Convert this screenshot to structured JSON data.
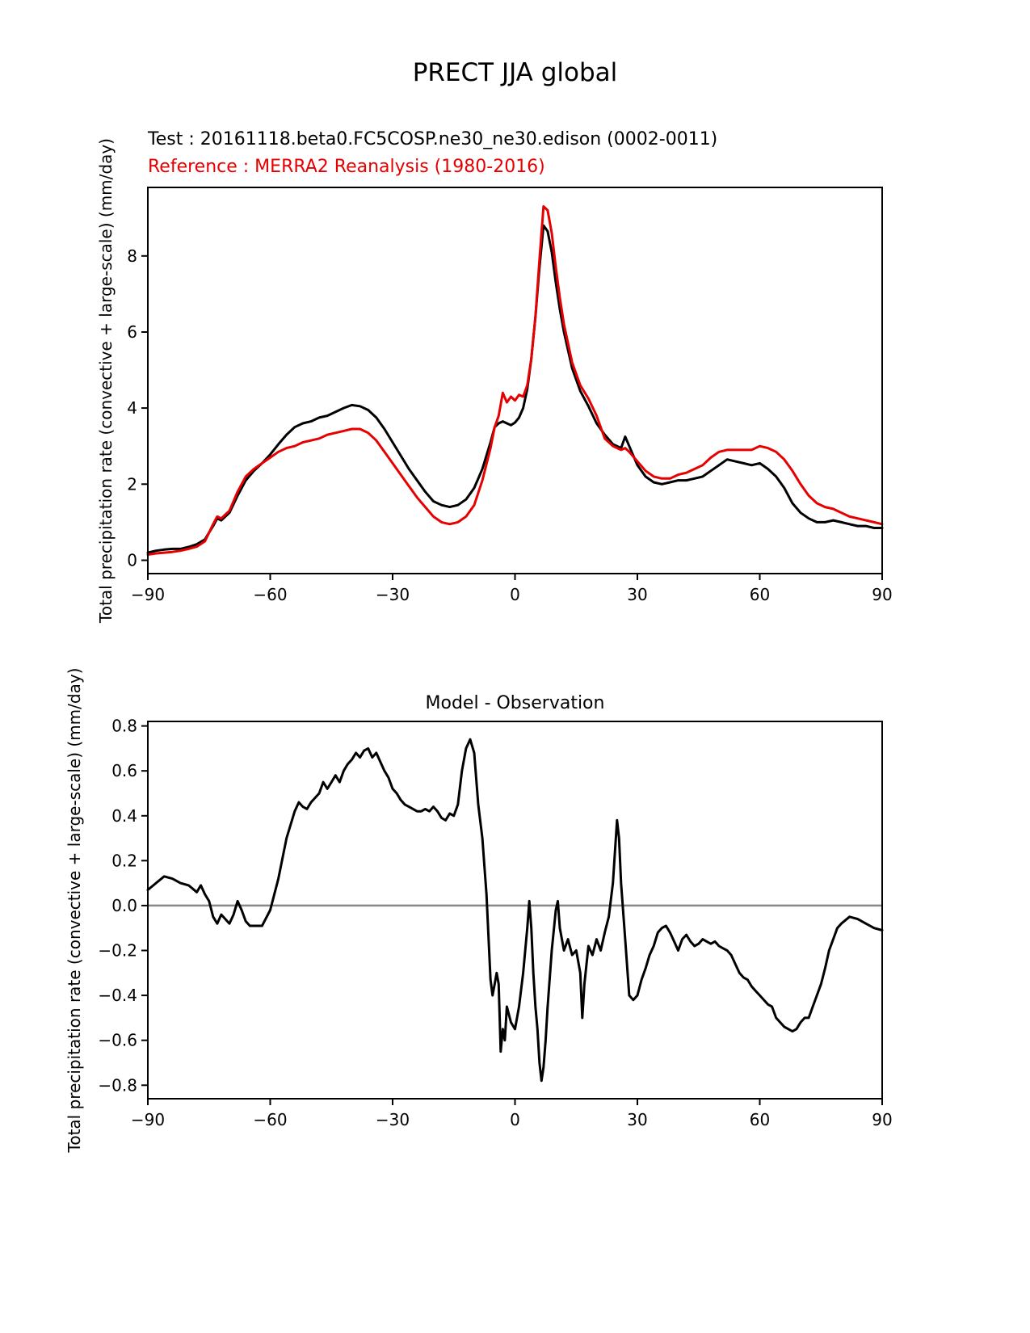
{
  "page_title": "PRECT JJA global",
  "colors": {
    "test": "#000000",
    "reference": "#e60000",
    "zero_line": "#888888",
    "axis": "#000000"
  },
  "chart_data": [
    {
      "type": "line",
      "title": "",
      "annotations": [
        "Test : 20161118.beta0.FC5COSP.ne30_ne30.edison (0002-0011)",
        "Reference : MERRA2 Reanalysis (1980-2016)"
      ],
      "xlabel": "",
      "ylabel": "Total precipitation rate (convective + large-scale) (mm/day)",
      "xlim": [
        -90,
        90
      ],
      "ylim": [
        -0.35,
        9.8
      ],
      "grid": false,
      "legend_position": "above-left",
      "xticks": {
        "values": [
          -90,
          -60,
          -30,
          0,
          30,
          60,
          90
        ],
        "labels": [
          "−90",
          "−60",
          "−30",
          "0",
          "30",
          "60",
          "90"
        ]
      },
      "yticks": {
        "values": [
          0,
          2,
          4,
          6,
          8
        ],
        "labels": [
          "0",
          "2",
          "4",
          "6",
          "8"
        ]
      },
      "zero_line": false,
      "zero_line_color": "#888888",
      "series": [
        {
          "name": "Test : 20161118.beta0.FC5COSP.ne30_ne30.edison (0002-0011)",
          "color": "#000000",
          "x": [
            -90,
            -88,
            -86,
            -84,
            -82,
            -80,
            -78,
            -76,
            -74,
            -73,
            -72,
            -71,
            -70,
            -68,
            -66,
            -64,
            -62,
            -60,
            -58,
            -56,
            -54,
            -52,
            -50,
            -48,
            -46,
            -44,
            -42,
            -40,
            -38,
            -36,
            -34,
            -32,
            -30,
            -28,
            -26,
            -24,
            -22,
            -20,
            -18,
            -16,
            -14,
            -12,
            -10,
            -8,
            -6,
            -5,
            -4,
            -3,
            -2,
            -1,
            0,
            1,
            2,
            3,
            4,
            5,
            6,
            7,
            8,
            9,
            10,
            11,
            12,
            14,
            16,
            18,
            20,
            22,
            24,
            26,
            27,
            28,
            30,
            32,
            34,
            36,
            38,
            40,
            42,
            44,
            46,
            48,
            50,
            52,
            54,
            56,
            58,
            60,
            62,
            64,
            66,
            68,
            70,
            72,
            74,
            76,
            78,
            80,
            82,
            84,
            86,
            88,
            90
          ],
          "y": [
            0.2,
            0.25,
            0.28,
            0.3,
            0.3,
            0.35,
            0.42,
            0.55,
            0.9,
            1.1,
            1.05,
            1.15,
            1.25,
            1.7,
            2.1,
            2.35,
            2.55,
            2.78,
            3.05,
            3.3,
            3.5,
            3.6,
            3.65,
            3.75,
            3.8,
            3.9,
            4.0,
            4.08,
            4.05,
            3.95,
            3.75,
            3.45,
            3.1,
            2.75,
            2.4,
            2.1,
            1.8,
            1.55,
            1.45,
            1.4,
            1.45,
            1.6,
            1.9,
            2.4,
            3.1,
            3.5,
            3.6,
            3.65,
            3.6,
            3.55,
            3.62,
            3.75,
            4.0,
            4.5,
            5.3,
            6.4,
            7.7,
            8.8,
            8.65,
            8.1,
            7.3,
            6.6,
            6.0,
            5.05,
            4.45,
            4.05,
            3.6,
            3.3,
            3.05,
            2.95,
            3.25,
            3.0,
            2.5,
            2.2,
            2.05,
            2.0,
            2.05,
            2.1,
            2.1,
            2.15,
            2.2,
            2.35,
            2.5,
            2.65,
            2.6,
            2.55,
            2.5,
            2.55,
            2.4,
            2.2,
            1.9,
            1.5,
            1.25,
            1.1,
            1.0,
            1.0,
            1.05,
            1.0,
            0.95,
            0.9,
            0.9,
            0.85,
            0.85
          ]
        },
        {
          "name": "Reference : MERRA2 Reanalysis (1980-2016)",
          "color": "#e60000",
          "x": [
            -90,
            -88,
            -86,
            -84,
            -82,
            -80,
            -78,
            -76,
            -74,
            -73,
            -72,
            -71,
            -70,
            -68,
            -66,
            -64,
            -62,
            -60,
            -58,
            -56,
            -54,
            -52,
            -50,
            -48,
            -46,
            -44,
            -42,
            -40,
            -38,
            -36,
            -34,
            -32,
            -30,
            -28,
            -26,
            -24,
            -22,
            -20,
            -18,
            -16,
            -14,
            -12,
            -10,
            -8,
            -6,
            -5,
            -4,
            -3,
            -2,
            -1,
            0,
            1,
            2,
            3,
            4,
            5,
            6,
            7,
            8,
            9,
            10,
            11,
            12,
            14,
            16,
            18,
            20,
            22,
            24,
            26,
            27,
            28,
            30,
            32,
            34,
            36,
            38,
            40,
            42,
            44,
            46,
            48,
            50,
            52,
            54,
            56,
            58,
            60,
            62,
            64,
            66,
            68,
            70,
            72,
            74,
            76,
            78,
            80,
            82,
            84,
            86,
            88,
            90
          ],
          "y": [
            0.15,
            0.18,
            0.2,
            0.22,
            0.25,
            0.3,
            0.36,
            0.5,
            0.95,
            1.15,
            1.1,
            1.2,
            1.3,
            1.8,
            2.2,
            2.4,
            2.55,
            2.7,
            2.85,
            2.95,
            3.0,
            3.1,
            3.15,
            3.2,
            3.3,
            3.35,
            3.4,
            3.45,
            3.45,
            3.35,
            3.15,
            2.85,
            2.55,
            2.25,
            1.95,
            1.65,
            1.4,
            1.15,
            1.0,
            0.95,
            1.0,
            1.15,
            1.45,
            2.1,
            2.95,
            3.5,
            3.8,
            4.4,
            4.15,
            4.3,
            4.2,
            4.35,
            4.3,
            4.6,
            5.3,
            6.4,
            7.9,
            9.3,
            9.2,
            8.6,
            7.7,
            6.9,
            6.2,
            5.2,
            4.6,
            4.25,
            3.8,
            3.2,
            3.0,
            2.9,
            2.95,
            2.85,
            2.6,
            2.35,
            2.2,
            2.15,
            2.15,
            2.25,
            2.3,
            2.4,
            2.5,
            2.7,
            2.85,
            2.9,
            2.9,
            2.9,
            2.9,
            3.0,
            2.95,
            2.85,
            2.65,
            2.35,
            2.0,
            1.7,
            1.5,
            1.4,
            1.35,
            1.25,
            1.15,
            1.1,
            1.05,
            1.0,
            0.95
          ]
        }
      ]
    },
    {
      "type": "line",
      "title": "Model - Observation",
      "annotations": [],
      "xlabel": "",
      "ylabel": "Total precipitation rate (convective + large-scale) (mm/day)",
      "xlim": [
        -90,
        90
      ],
      "ylim": [
        -0.86,
        0.82
      ],
      "grid": false,
      "legend_position": "none",
      "xticks": {
        "values": [
          -90,
          -60,
          -30,
          0,
          30,
          60,
          90
        ],
        "labels": [
          "−90",
          "−60",
          "−30",
          "0",
          "30",
          "60",
          "90"
        ]
      },
      "yticks": {
        "values": [
          -0.8,
          -0.6,
          -0.4,
          -0.2,
          0.0,
          0.2,
          0.4,
          0.6,
          0.8
        ],
        "labels": [
          "−0.8",
          "−0.6",
          "−0.4",
          "−0.2",
          "0.0",
          "0.2",
          "0.4",
          "0.6",
          "0.8"
        ]
      },
      "zero_line": true,
      "zero_line_color": "#888888",
      "series": [
        {
          "name": "Model - Observation",
          "color": "#000000",
          "x": [
            -90,
            -88,
            -86,
            -84,
            -82,
            -80,
            -78,
            -77,
            -76,
            -75,
            -74,
            -73,
            -72,
            -71,
            -70,
            -69,
            -68,
            -67,
            -66,
            -65,
            -64,
            -62,
            -60,
            -58,
            -56,
            -54,
            -53,
            -52,
            -51,
            -50,
            -48,
            -47,
            -46,
            -45,
            -44,
            -43,
            -42,
            -41,
            -40,
            -39,
            -38,
            -37,
            -36,
            -35,
            -34,
            -33,
            -32,
            -31,
            -30,
            -29,
            -28,
            -27,
            -26,
            -25,
            -24,
            -23,
            -22,
            -21,
            -20,
            -19,
            -18,
            -17,
            -16,
            -15,
            -14,
            -13,
            -12,
            -11,
            -10,
            -9,
            -8,
            -7,
            -6,
            -5.5,
            -5,
            -4.5,
            -4,
            -3.5,
            -3,
            -2.5,
            -2,
            -1,
            0,
            1,
            2,
            3,
            3.5,
            4,
            4.5,
            5,
            5.5,
            6,
            6.5,
            7,
            7.5,
            8,
            9,
            10,
            10.5,
            11,
            12,
            13,
            14,
            15,
            16,
            16.5,
            17,
            18,
            19,
            20,
            21,
            22,
            23,
            24,
            25,
            25.5,
            26,
            27,
            28,
            29,
            30,
            31,
            32,
            33,
            34,
            35,
            36,
            37,
            38,
            39,
            40,
            41,
            42,
            43,
            44,
            45,
            46,
            47,
            48,
            49,
            50,
            51,
            52,
            53,
            54,
            55,
            56,
            57,
            58,
            59,
            60,
            61,
            62,
            63,
            64,
            65,
            66,
            67,
            68,
            69,
            70,
            71,
            72,
            73,
            74,
            75,
            76,
            77,
            78,
            79,
            80,
            82,
            84,
            86,
            88,
            90
          ],
          "y": [
            0.07,
            0.1,
            0.13,
            0.12,
            0.1,
            0.09,
            0.06,
            0.09,
            0.05,
            0.02,
            -0.05,
            -0.08,
            -0.04,
            -0.06,
            -0.08,
            -0.04,
            0.02,
            -0.02,
            -0.07,
            -0.09,
            -0.09,
            -0.09,
            -0.02,
            0.12,
            0.3,
            0.42,
            0.46,
            0.44,
            0.43,
            0.46,
            0.5,
            0.55,
            0.52,
            0.55,
            0.58,
            0.55,
            0.6,
            0.63,
            0.65,
            0.68,
            0.66,
            0.69,
            0.7,
            0.66,
            0.68,
            0.64,
            0.6,
            0.57,
            0.52,
            0.5,
            0.47,
            0.45,
            0.44,
            0.43,
            0.42,
            0.42,
            0.43,
            0.42,
            0.44,
            0.42,
            0.39,
            0.38,
            0.41,
            0.4,
            0.45,
            0.6,
            0.7,
            0.74,
            0.68,
            0.45,
            0.3,
            0.05,
            -0.33,
            -0.4,
            -0.35,
            -0.3,
            -0.35,
            -0.65,
            -0.55,
            -0.6,
            -0.45,
            -0.52,
            -0.55,
            -0.45,
            -0.3,
            -0.1,
            0.02,
            -0.1,
            -0.3,
            -0.45,
            -0.55,
            -0.7,
            -0.78,
            -0.72,
            -0.6,
            -0.45,
            -0.2,
            -0.02,
            0.02,
            -0.1,
            -0.2,
            -0.15,
            -0.22,
            -0.2,
            -0.3,
            -0.5,
            -0.35,
            -0.18,
            -0.22,
            -0.15,
            -0.2,
            -0.12,
            -0.05,
            0.1,
            0.38,
            0.3,
            0.1,
            -0.15,
            -0.4,
            -0.42,
            -0.4,
            -0.33,
            -0.28,
            -0.22,
            -0.18,
            -0.12,
            -0.1,
            -0.09,
            -0.12,
            -0.16,
            -0.2,
            -0.15,
            -0.13,
            -0.16,
            -0.18,
            -0.17,
            -0.15,
            -0.16,
            -0.17,
            -0.16,
            -0.18,
            -0.19,
            -0.2,
            -0.22,
            -0.26,
            -0.3,
            -0.32,
            -0.33,
            -0.36,
            -0.38,
            -0.4,
            -0.42,
            -0.44,
            -0.45,
            -0.5,
            -0.52,
            -0.54,
            -0.55,
            -0.56,
            -0.55,
            -0.52,
            -0.5,
            -0.5,
            -0.45,
            -0.4,
            -0.35,
            -0.28,
            -0.2,
            -0.15,
            -0.1,
            -0.08,
            -0.05,
            -0.06,
            -0.08,
            -0.1,
            -0.11
          ]
        }
      ]
    }
  ]
}
